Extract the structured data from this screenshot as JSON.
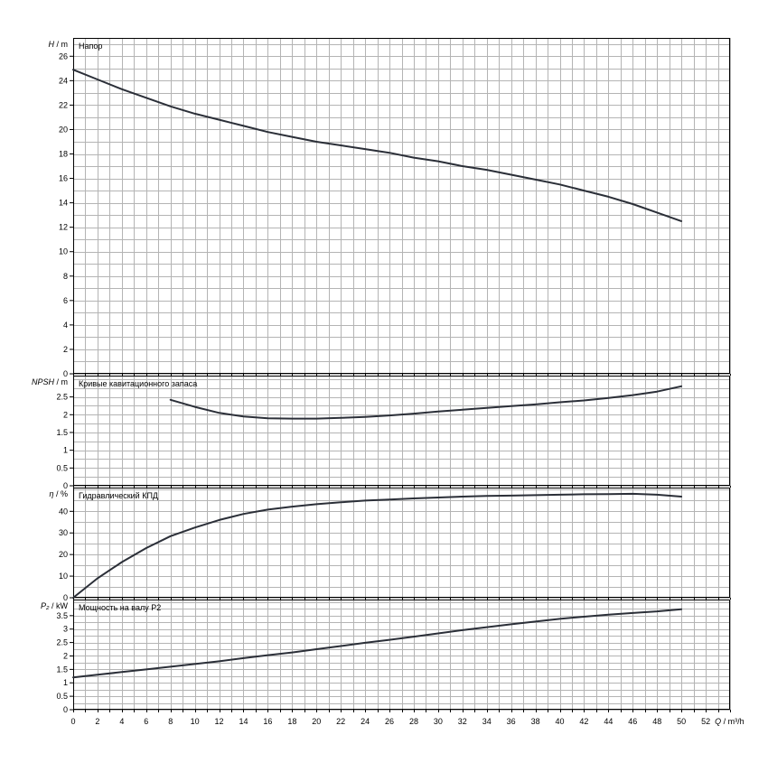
{
  "colors": {
    "grid": "#b4b4b4",
    "frame": "#000000",
    "curve": "#2b2f38",
    "background": "#ffffff"
  },
  "chart_data": {
    "type": "line",
    "x_axis": {
      "label_var": "Q",
      "label_unit": "m³/h",
      "range": [
        0,
        54
      ],
      "tick_labels": [
        0,
        2,
        4,
        6,
        8,
        10,
        12,
        14,
        16,
        18,
        20,
        22,
        24,
        26,
        28,
        30,
        32,
        34,
        36,
        38,
        40,
        42,
        44,
        46,
        48,
        50,
        52
      ],
      "grid_step": 1
    },
    "panels": [
      {
        "id": "head",
        "title": "Напор",
        "y_var": "H",
        "y_unit": "m",
        "ylim": [
          0,
          27.5
        ],
        "grid_step": 1,
        "y_ticks": [
          0,
          2,
          4,
          6,
          8,
          10,
          12,
          14,
          16,
          18,
          20,
          22,
          24,
          26
        ],
        "y_tick_labels": [
          "0",
          "2",
          "4",
          "6",
          "8",
          "10",
          "12",
          "14",
          "16",
          "18",
          "20",
          "22",
          "24",
          "26"
        ],
        "series": [
          {
            "x": [
              0,
              2,
              4,
              6,
              8,
              10,
              12,
              14,
              16,
              18,
              20,
              22,
              24,
              26,
              28,
              30,
              32,
              34,
              36,
              38,
              40,
              42,
              44,
              46,
              48,
              50
            ],
            "y": [
              24.9,
              24.1,
              23.3,
              22.6,
              21.9,
              21.3,
              20.8,
              20.3,
              19.8,
              19.4,
              19.0,
              18.7,
              18.4,
              18.1,
              17.7,
              17.4,
              17.0,
              16.7,
              16.3,
              15.9,
              15.5,
              15.0,
              14.5,
              13.9,
              13.2,
              12.5
            ]
          }
        ]
      },
      {
        "id": "npsh",
        "title": "Кривые кавитационного запаса",
        "y_var": "NPSH",
        "y_unit": "m",
        "ylim": [
          0,
          3.1
        ],
        "grid_step": 0.25,
        "y_ticks": [
          0,
          0.5,
          1,
          1.5,
          2,
          2.5
        ],
        "y_tick_labels": [
          "0",
          "0.5",
          "1",
          "1.5",
          "2",
          "2.5"
        ],
        "series": [
          {
            "x": [
              8,
              10,
              12,
              14,
              16,
              18,
              20,
              22,
              24,
              26,
              28,
              30,
              32,
              34,
              36,
              38,
              40,
              42,
              44,
              46,
              48,
              50
            ],
            "y": [
              2.42,
              2.22,
              2.05,
              1.95,
              1.9,
              1.89,
              1.89,
              1.91,
              1.94,
              1.98,
              2.03,
              2.09,
              2.14,
              2.19,
              2.24,
              2.29,
              2.35,
              2.4,
              2.47,
              2.55,
              2.65,
              2.8
            ]
          }
        ]
      },
      {
        "id": "efficiency",
        "title": "Гидравлический КПД",
        "y_var": "η",
        "y_unit": "%",
        "ylim": [
          0,
          51
        ],
        "grid_step": 5,
        "y_ticks": [
          0,
          10,
          20,
          30,
          40
        ],
        "y_tick_labels": [
          "0",
          "10",
          "20",
          "30",
          "40"
        ],
        "series": [
          {
            "x": [
              0,
              2,
              4,
              6,
              8,
              10,
              12,
              14,
              16,
              18,
              20,
              22,
              24,
              26,
              28,
              30,
              32,
              34,
              36,
              38,
              40,
              42,
              44,
              46,
              48,
              50
            ],
            "y": [
              0,
              9,
              16.5,
              23,
              28.5,
              32.5,
              36,
              38.8,
              40.8,
              42.2,
              43.3,
              44.2,
              45,
              45.5,
              46,
              46.4,
              46.8,
              47.1,
              47.3,
              47.5,
              47.7,
              47.9,
              48,
              48.1,
              47.7,
              46.8
            ]
          }
        ]
      },
      {
        "id": "power",
        "title": "Мощность на валу P2",
        "y_var": "P₂",
        "y_unit": "kW",
        "ylim": [
          0,
          4.1
        ],
        "grid_step": 0.25,
        "y_ticks": [
          0,
          0.5,
          1,
          1.5,
          2,
          2.5,
          3,
          3.5
        ],
        "y_tick_labels": [
          "0",
          "0.5",
          "1",
          "1.5",
          "2",
          "2.5",
          "3",
          "3.5"
        ],
        "series": [
          {
            "x": [
              0,
              2,
              4,
              6,
              8,
              10,
              12,
              14,
              16,
              18,
              20,
              22,
              24,
              26,
              28,
              30,
              32,
              34,
              36,
              38,
              40,
              42,
              44,
              46,
              48,
              50
            ],
            "y": [
              1.2,
              1.3,
              1.4,
              1.5,
              1.6,
              1.7,
              1.8,
              1.92,
              2.03,
              2.13,
              2.25,
              2.37,
              2.49,
              2.6,
              2.72,
              2.84,
              2.96,
              3.07,
              3.18,
              3.28,
              3.38,
              3.46,
              3.54,
              3.6,
              3.66,
              3.74
            ]
          }
        ]
      }
    ]
  }
}
